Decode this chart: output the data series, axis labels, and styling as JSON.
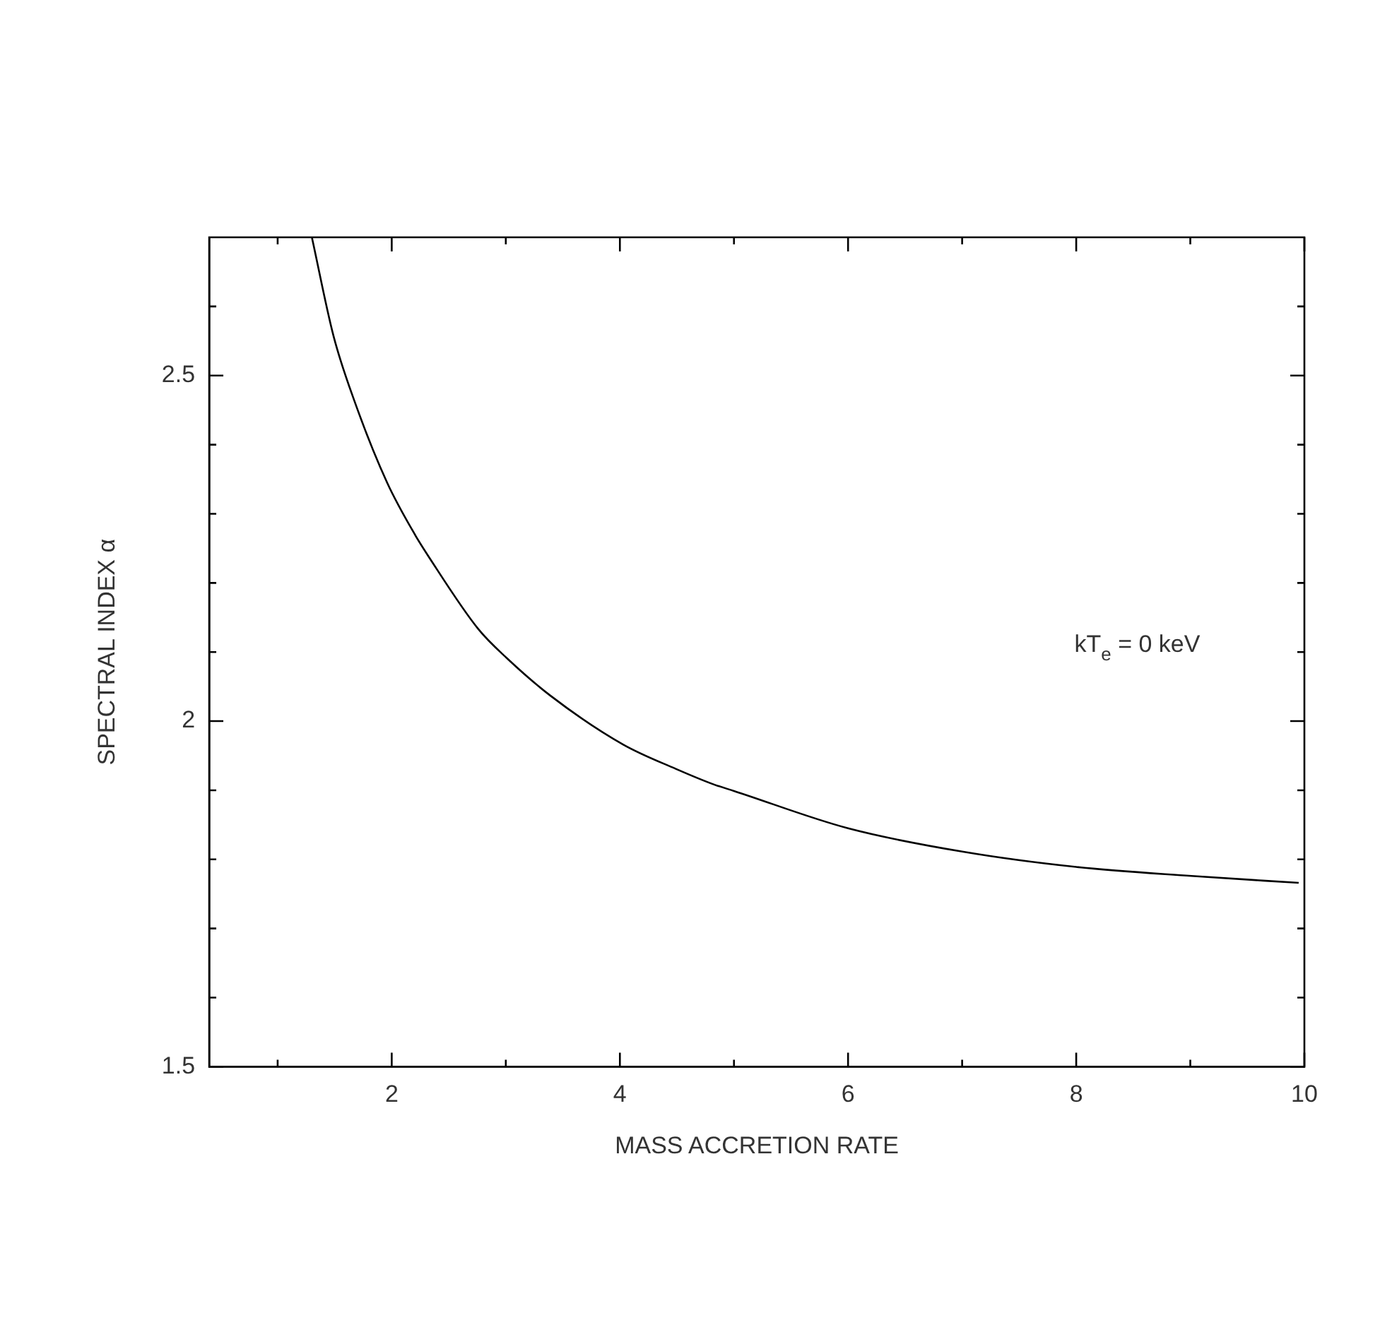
{
  "chart_data": {
    "type": "line",
    "xlabel": "MASS ACCRETION RATE",
    "ylabel": "SPECTRAL INDEX α",
    "xlim": [
      0.4,
      10
    ],
    "ylim": [
      1.5,
      2.7
    ],
    "xticks": [
      {
        "value": 1,
        "label": null
      },
      2,
      {
        "value": 3,
        "label": null
      },
      4,
      {
        "value": 5,
        "label": null
      },
      6,
      {
        "value": 7,
        "label": null
      },
      8,
      {
        "value": 9,
        "label": null
      },
      10
    ],
    "yticks": [
      1.5,
      {
        "value": 1.6,
        "label": null
      },
      {
        "value": 1.7,
        "label": null
      },
      {
        "value": 1.8,
        "label": null
      },
      {
        "value": 1.9,
        "label": null
      },
      2,
      {
        "value": 2.1,
        "label": null
      },
      {
        "value": 2.2,
        "label": null
      },
      {
        "value": 2.3,
        "label": null
      },
      {
        "value": 2.4,
        "label": null
      },
      2.5,
      {
        "value": 2.6,
        "label": null
      }
    ],
    "marker": "none",
    "line_style": "solid",
    "annotations": [
      "kT$_{e}$ = 0 keV"
    ],
    "series": [
      {
        "color": "#000000",
        "x": [
          1.3,
          1.49,
          1.68,
          1.96,
          2.21,
          2.32,
          2.76,
          3.01,
          3.39,
          4.03,
          4.49,
          4.83,
          5.0,
          6.0,
          7.01,
          8.0,
          9.01,
          9.95
        ],
        "values": [
          2.7,
          2.557,
          2.46,
          2.345,
          2.268,
          2.239,
          2.133,
          2.091,
          2.037,
          1.966,
          1.931,
          1.908,
          1.899,
          1.845,
          1.811,
          1.789,
          1.776,
          1.766
        ]
      }
    ]
  }
}
